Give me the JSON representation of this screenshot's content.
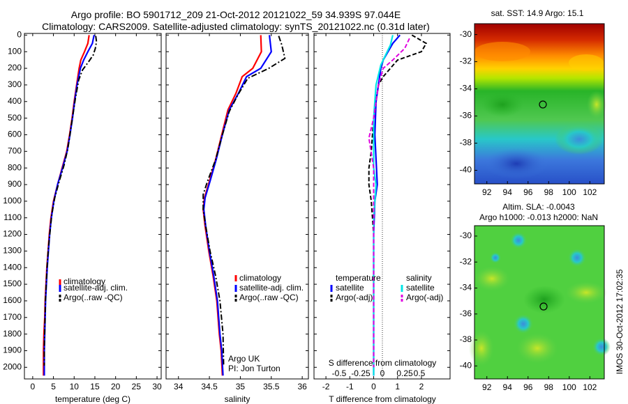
{
  "title_line1": "Argo profile: BO 5901712_209 21-Oct-2012 20121022_59 34.939S 97.044E",
  "title_line2": "Climatology: CARS2009. Satellite-adjusted climatology: synTS_20121022.nc (0.31d later)",
  "side_label": "IMOS 30-Oct-2012 17:02:35",
  "colors": {
    "climatology": "#ff0000",
    "satellite": "#0000ff",
    "argo": "#000000",
    "sat_salinity": "#00e6e6",
    "argo_salinity": "#e000e0"
  },
  "depth_ticks": [
    0,
    100,
    200,
    300,
    400,
    500,
    600,
    700,
    800,
    900,
    1000,
    1100,
    1200,
    1300,
    1400,
    1500,
    1600,
    1700,
    1800,
    1900,
    2000
  ],
  "depth_ticks_shown": [
    "0",
    "100",
    "200",
    "300",
    "400",
    "500",
    "600",
    "700",
    "800",
    "900",
    "1000",
    "1100",
    "1200",
    "1300",
    "1400",
    "1500",
    "1600",
    "1700",
    "1800",
    "1900",
    "2000"
  ],
  "chart_data": [
    {
      "type": "line",
      "xlabel": "temperature (deg C)",
      "ylabel": "",
      "xlim": [
        -2,
        31
      ],
      "ylim": [
        2070,
        -10
      ],
      "x_ticks": [
        0,
        5,
        10,
        15,
        20,
        25,
        30
      ],
      "x_tick_labels": [
        "0",
        "5",
        "10",
        "15",
        "20",
        "25",
        "30"
      ],
      "legend_position": "lower-middle",
      "series": [
        {
          "name": "climatology",
          "style": "solid",
          "color": "#ff0000",
          "points": [
            [
              13.6,
              0
            ],
            [
              13.3,
              50
            ],
            [
              12.5,
              100
            ],
            [
              11.6,
              150
            ],
            [
              11.2,
              200
            ],
            [
              10.6,
              300
            ],
            [
              10.0,
              400
            ],
            [
              9.5,
              500
            ],
            [
              8.9,
              600
            ],
            [
              8.2,
              700
            ],
            [
              7.1,
              800
            ],
            [
              6.0,
              900
            ],
            [
              5.0,
              1000
            ],
            [
              4.4,
              1100
            ],
            [
              4.0,
              1200
            ],
            [
              3.7,
              1300
            ],
            [
              3.4,
              1400
            ],
            [
              3.2,
              1500
            ],
            [
              3.0,
              1600
            ],
            [
              2.9,
              1700
            ],
            [
              2.7,
              1800
            ],
            [
              2.6,
              1900
            ],
            [
              2.6,
              2050
            ]
          ]
        },
        {
          "name": "satellite-adj. clim.",
          "style": "solid",
          "color": "#0000ff",
          "points": [
            [
              14.8,
              0
            ],
            [
              14.4,
              50
            ],
            [
              13.3,
              100
            ],
            [
              12.3,
              150
            ],
            [
              11.5,
              200
            ],
            [
              10.7,
              300
            ],
            [
              10.1,
              400
            ],
            [
              9.6,
              500
            ],
            [
              9.0,
              600
            ],
            [
              8.3,
              700
            ],
            [
              7.2,
              800
            ],
            [
              6.0,
              900
            ],
            [
              5.1,
              1000
            ],
            [
              4.5,
              1100
            ],
            [
              4.1,
              1200
            ],
            [
              3.8,
              1300
            ],
            [
              3.5,
              1400
            ],
            [
              3.3,
              1500
            ],
            [
              3.1,
              1600
            ],
            [
              3.0,
              1700
            ],
            [
              2.9,
              1800
            ],
            [
              2.8,
              1900
            ],
            [
              2.8,
              2050
            ]
          ]
        },
        {
          "name": "Argo(..raw -QC)",
          "style": "dashdot",
          "color": "#000000",
          "points": [
            [
              15.2,
              5
            ],
            [
              15.4,
              40
            ],
            [
              15.1,
              80
            ],
            [
              14.6,
              120
            ],
            [
              13.5,
              160
            ],
            [
              12.0,
              210
            ],
            [
              11.1,
              270
            ],
            [
              10.3,
              380
            ],
            [
              9.7,
              480
            ],
            [
              9.1,
              580
            ],
            [
              8.5,
              680
            ],
            [
              7.6,
              780
            ],
            [
              6.4,
              880
            ],
            [
              5.3,
              980
            ],
            [
              4.6,
              1080
            ],
            [
              4.2,
              1180
            ],
            [
              3.8,
              1280
            ],
            [
              3.5,
              1380
            ],
            [
              3.3,
              1480
            ],
            [
              3.1,
              1580
            ],
            [
              3.0,
              1680
            ],
            [
              2.9,
              1780
            ],
            [
              2.8,
              1880
            ],
            [
              2.8,
              1990
            ]
          ]
        }
      ]
    },
    {
      "type": "line",
      "xlabel": "salinity",
      "ylabel": "",
      "xlim": [
        33.8,
        36.1
      ],
      "ylim": [
        2070,
        -10
      ],
      "x_ticks": [
        34,
        34.5,
        35,
        35.5,
        36
      ],
      "x_tick_labels": [
        "34",
        "34.5",
        "35",
        "35.5",
        "36"
      ],
      "annotation_lines": [
        "Argo UK",
        "PI: Jon Turton"
      ],
      "legend_position": "lower-middle",
      "series": [
        {
          "name": "climatology",
          "style": "solid",
          "color": "#ff0000",
          "points": [
            [
              35.33,
              0
            ],
            [
              35.34,
              100
            ],
            [
              35.2,
              200
            ],
            [
              35.03,
              250
            ],
            [
              34.93,
              350
            ],
            [
              34.8,
              450
            ],
            [
              34.7,
              600
            ],
            [
              34.6,
              750
            ],
            [
              34.5,
              880
            ],
            [
              34.42,
              980
            ],
            [
              34.4,
              1050
            ],
            [
              34.43,
              1150
            ],
            [
              34.49,
              1300
            ],
            [
              34.56,
              1450
            ],
            [
              34.62,
              1600
            ],
            [
              34.66,
              1800
            ],
            [
              34.69,
              1900
            ],
            [
              34.71,
              2050
            ]
          ]
        },
        {
          "name": "satellite-adj. clim.",
          "style": "solid",
          "color": "#0000ff",
          "points": [
            [
              35.47,
              0
            ],
            [
              35.5,
              100
            ],
            [
              35.33,
              200
            ],
            [
              35.1,
              250
            ],
            [
              34.97,
              350
            ],
            [
              34.82,
              450
            ],
            [
              34.71,
              600
            ],
            [
              34.61,
              750
            ],
            [
              34.51,
              880
            ],
            [
              34.43,
              980
            ],
            [
              34.41,
              1050
            ],
            [
              34.44,
              1150
            ],
            [
              34.5,
              1300
            ],
            [
              34.57,
              1450
            ],
            [
              34.63,
              1600
            ],
            [
              34.67,
              1800
            ],
            [
              34.7,
              1900
            ],
            [
              34.72,
              2050
            ]
          ]
        },
        {
          "name": "Argo(..raw -QC)",
          "style": "dashdot",
          "color": "#000000",
          "points": [
            [
              35.62,
              5
            ],
            [
              35.67,
              60
            ],
            [
              35.72,
              140
            ],
            [
              35.46,
              200
            ],
            [
              35.12,
              260
            ],
            [
              34.96,
              360
            ],
            [
              34.82,
              460
            ],
            [
              34.71,
              600
            ],
            [
              34.6,
              750
            ],
            [
              34.47,
              880
            ],
            [
              34.4,
              960
            ],
            [
              34.4,
              1050
            ],
            [
              34.44,
              1150
            ],
            [
              34.51,
              1300
            ],
            [
              34.6,
              1450
            ],
            [
              34.67,
              1600
            ],
            [
              34.72,
              1800
            ],
            [
              34.73,
              1990
            ]
          ]
        }
      ]
    },
    {
      "type": "line",
      "xlabel": "T difference from climatology",
      "top_xlabel": "S difference from climatology",
      "xlim": [
        -2.5,
        3.2
      ],
      "ylim": [
        2070,
        -10
      ],
      "x_ticks": [
        -2,
        -1,
        0,
        1,
        2
      ],
      "x_tick_labels": [
        "-2",
        "-1",
        "0",
        "1",
        "2"
      ],
      "top_tick_labels": [
        "-0.5",
        "-0.25",
        "0",
        "0.25",
        "0.5"
      ],
      "legend_temperature": "temperature",
      "legend_salinity": "salinity",
      "series": [
        {
          "name": "satellite",
          "group": "temperature",
          "style": "solid",
          "color": "#0000ff",
          "points": [
            [
              1.1,
              0
            ],
            [
              0.8,
              50
            ],
            [
              0.6,
              100
            ],
            [
              0.4,
              150
            ],
            [
              0.3,
              200
            ],
            [
              0.1,
              400
            ],
            [
              0.05,
              600
            ],
            [
              0.15,
              900
            ],
            [
              0.05,
              1000
            ],
            [
              0.0,
              1200
            ],
            [
              0.0,
              2050
            ]
          ]
        },
        {
          "name": "Argo(-adj)",
          "group": "temperature",
          "style": "dashed",
          "color": "#000000",
          "points": [
            [
              1.6,
              0
            ],
            [
              2.2,
              50
            ],
            [
              2.0,
              100
            ],
            [
              1.0,
              150
            ],
            [
              0.4,
              250
            ],
            [
              0.2,
              300
            ],
            [
              0.1,
              400
            ],
            [
              0.0,
              500
            ],
            [
              -0.1,
              700
            ],
            [
              -0.2,
              800
            ],
            [
              -0.2,
              900
            ],
            [
              -0.1,
              1000
            ],
            [
              0.0,
              1200
            ],
            [
              0.0,
              2000
            ]
          ]
        },
        {
          "name": "satellite",
          "group": "salinity",
          "style": "solid",
          "color": "#00e6e6",
          "points": [
            [
              0.8,
              0
            ],
            [
              0.7,
              60
            ],
            [
              0.5,
              120
            ],
            [
              0.3,
              180
            ],
            [
              0.1,
              300
            ],
            [
              0.0,
              500
            ],
            [
              0.0,
              800
            ],
            [
              0.1,
              900
            ],
            [
              0.0,
              1100
            ],
            [
              0.0,
              2050
            ]
          ]
        },
        {
          "name": "Argo(-adj)",
          "group": "salinity",
          "style": "dashed",
          "color": "#e000e0",
          "points": [
            [
              1.5,
              20
            ],
            [
              1.3,
              80
            ],
            [
              0.8,
              150
            ],
            [
              0.4,
              200
            ],
            [
              0.2,
              300
            ],
            [
              0.0,
              500
            ],
            [
              -0.2,
              620
            ],
            [
              0.0,
              800
            ],
            [
              0.0,
              2000
            ]
          ]
        }
      ]
    }
  ],
  "map_sst": {
    "title": "sat. SST: 14.9 Argo: 15.1",
    "x_ticks": [
      "92",
      "94",
      "96",
      "98",
      "100",
      "102"
    ],
    "y_ticks": [
      "-30",
      "-32",
      "-34",
      "-36",
      "-38",
      "-40"
    ],
    "marker": {
      "lon": 97.04,
      "lat": -34.94
    }
  },
  "map_sla": {
    "title_line1": "Altim. SLA: -0.0043",
    "title_line2": "Argo h1000: -0.013 h2000: NaN",
    "x_ticks": [
      "92",
      "94",
      "96",
      "98",
      "100",
      "102"
    ],
    "y_ticks": [
      "-30",
      "-32",
      "-34",
      "-36",
      "-38",
      "-40"
    ],
    "marker": {
      "lon": 97.04,
      "lat": -34.94
    }
  }
}
